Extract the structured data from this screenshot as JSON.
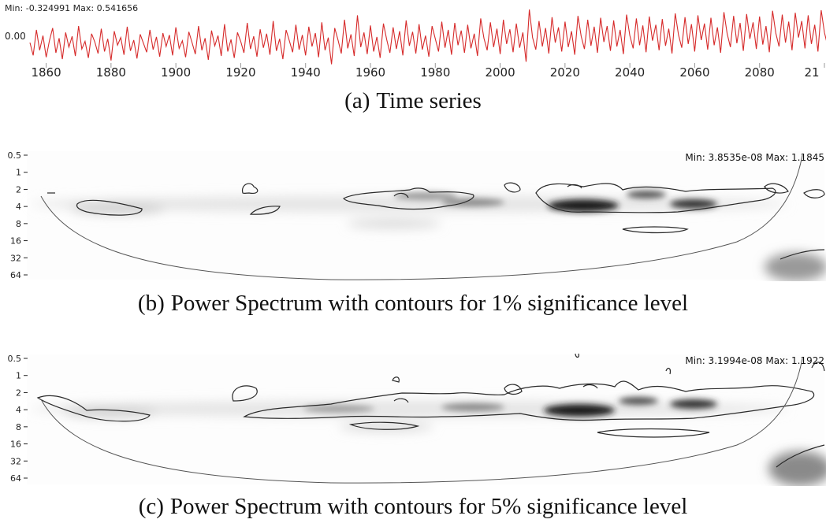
{
  "panels": [
    {
      "id": "a",
      "label": "(a)",
      "caption": "Time series",
      "readout": "Min: -0.324991  Max: 0.541656",
      "y_tick": "0.00"
    },
    {
      "id": "b",
      "label": "(b)",
      "caption": "Power Spectrum with contours for 1% significance level",
      "readout": "Min: 3.8535e-08  Max: 1.1845",
      "period_ticks": [
        "0.5",
        "1",
        "2",
        "4",
        "8",
        "16",
        "32",
        "64"
      ]
    },
    {
      "id": "c",
      "label": "(c)",
      "caption": "Power Spectrum with contours for 5% significance level",
      "readout": "Min: 3.1994e-08  Max: 1.1922",
      "period_ticks": [
        "0.5",
        "1",
        "2",
        "4",
        "8",
        "16",
        "32",
        "64"
      ]
    }
  ],
  "chart_data": [
    {
      "type": "line",
      "x_ticks": [
        "1860",
        "1880",
        "1900",
        "1920",
        "1940",
        "1960",
        "1980",
        "2000",
        "2020",
        "2040",
        "2060",
        "2080",
        "21"
      ],
      "xlim": [
        1855,
        2100
      ],
      "ylim": [
        -0.324991,
        0.541656
      ],
      "series_color": "#d62a2a",
      "min": -0.324991,
      "max": 0.541656,
      "grid": false,
      "series": [
        {
          "x_start": 1855,
          "x_step": 1,
          "values": [
            0.02,
            -0.18,
            0.22,
            -0.1,
            0.13,
            -0.21,
            0.05,
            0.25,
            -0.14,
            0.09,
            -0.24,
            0.18,
            -0.05,
            0.12,
            -0.19,
            0.28,
            -0.08,
            0.04,
            -0.22,
            0.16,
            0.03,
            -0.15,
            0.24,
            -0.12,
            0.08,
            -0.26,
            0.2,
            -0.02,
            0.1,
            -0.17,
            0.27,
            -0.11,
            0.06,
            -0.23,
            0.15,
            0.01,
            -0.13,
            0.22,
            -0.09,
            0.11,
            -0.2,
            0.17,
            -0.04,
            0.14,
            -0.18,
            0.26,
            -0.07,
            0.05,
            -0.21,
            0.19,
            0.02,
            -0.16,
            0.28,
            -0.1,
            0.09,
            -0.25,
            0.21,
            -0.03,
            0.13,
            -0.19,
            0.31,
            -0.12,
            0.07,
            -0.22,
            0.18,
            0.04,
            -0.14,
            0.33,
            -0.08,
            0.12,
            -0.2,
            0.23,
            -0.06,
            0.16,
            -0.17,
            0.36,
            -0.11,
            0.08,
            -0.24,
            0.22,
            0.05,
            -0.13,
            0.3,
            -0.09,
            0.14,
            -0.18,
            0.27,
            -0.04,
            0.17,
            -0.21,
            0.34,
            -0.1,
            0.1,
            -0.32,
            0.25,
            0.06,
            -0.15,
            0.38,
            -0.07,
            0.15,
            -0.19,
            0.45,
            -0.05,
            0.18,
            -0.16,
            0.29,
            -0.12,
            0.11,
            -0.22,
            0.32,
            0.07,
            -0.14,
            0.26,
            -0.08,
            0.2,
            -0.18,
            0.37,
            -0.03,
            0.19,
            -0.15,
            0.31,
            -0.09,
            0.13,
            -0.2,
            0.28,
            0.08,
            -0.12,
            0.35,
            -0.06,
            0.22,
            -0.17,
            0.33,
            -0.02,
            0.21,
            -0.14,
            0.3,
            -0.07,
            0.16,
            -0.19,
            0.4,
            0.09,
            -0.1,
            0.34,
            -0.05,
            0.24,
            -0.16,
            0.38,
            0.0,
            0.23,
            -0.13,
            0.32,
            -0.06,
            0.18,
            -0.28,
            0.54,
            0.1,
            -0.09,
            0.36,
            -0.04,
            0.25,
            -0.15,
            0.42,
            0.02,
            0.26,
            -0.12,
            0.35,
            -0.05,
            0.2,
            -0.17,
            0.44,
            0.12,
            -0.08,
            0.38,
            -0.03,
            0.27,
            -0.14,
            0.41,
            0.03,
            0.28,
            -0.11,
            0.37,
            -0.04,
            0.22,
            -0.16,
            0.46,
            0.13,
            -0.07,
            0.4,
            -0.02,
            0.29,
            -0.13,
            0.43,
            0.05,
            0.3,
            -0.1,
            0.39,
            -0.03,
            0.24,
            -0.15,
            0.48,
            0.14,
            -0.06,
            0.42,
            0.0,
            0.31,
            -0.12,
            0.45,
            0.06,
            0.32,
            -0.09,
            0.41,
            -0.02,
            0.26,
            -0.14,
            0.5,
            0.16,
            -0.05,
            0.44,
            0.01,
            0.33,
            -0.11,
            0.47,
            0.08,
            0.34,
            -0.08,
            0.43,
            -0.01,
            0.28,
            -0.13,
            0.52,
            0.17,
            -0.04,
            0.46,
            0.02,
            0.35,
            -0.1,
            0.49,
            0.1,
            0.36,
            -0.07,
            0.45,
            0.0,
            0.3,
            -0.12,
            0.53,
            0.18,
            -0.03,
            0.48,
            0.04,
            0.37,
            0.2
          ]
        }
      ]
    },
    {
      "type": "heatmap",
      "xlim": [
        1855,
        2100
      ],
      "y_ticks": [
        "0.5",
        "1",
        "2",
        "4",
        "8",
        "16",
        "32",
        "64"
      ],
      "colormap": "white-to-black",
      "min": 3.8535e-08,
      "max": 1.1845,
      "contour_level": "1%"
    },
    {
      "type": "heatmap",
      "xlim": [
        1855,
        2100
      ],
      "y_ticks": [
        "0.5",
        "1",
        "2",
        "4",
        "8",
        "16",
        "32",
        "64"
      ],
      "colormap": "white-to-black",
      "min": 3.1994e-08,
      "max": 1.1922,
      "contour_level": "5%"
    }
  ]
}
